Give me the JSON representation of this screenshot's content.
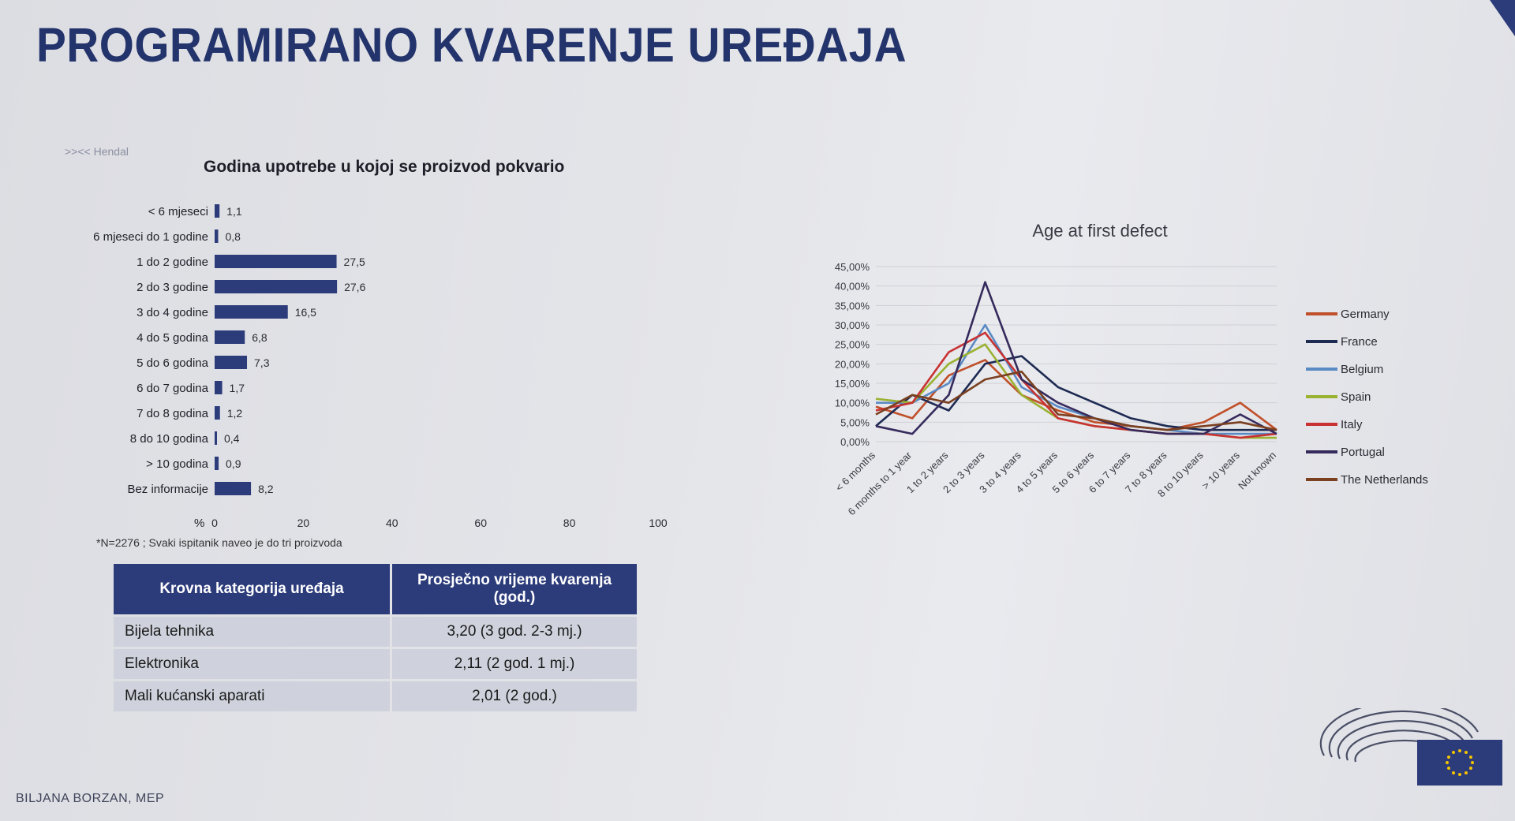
{
  "slide": {
    "title": "PROGRAMIRANO KVARENJE UREĐAJA",
    "logo_text": "Hendal",
    "footnote": "*N=2276 ; Svaki ispitanik naveo je do tri proizvoda",
    "author": "BILJANA BORZAN, MEP"
  },
  "table": {
    "headers": [
      "Krovna kategorija uređaja",
      "Prosječno vrijeme kvarenja (god.)"
    ],
    "rows": [
      {
        "category": "Bijela tehnika",
        "value": "3,20 (3 god. 2-3 mj.)"
      },
      {
        "category": "Elektronika",
        "value": "2,11 (2 god. 1 mj.)"
      },
      {
        "category": "Mali kućanski aparati",
        "value": "2,01 (2 god.)"
      }
    ]
  },
  "colors": {
    "title": "#23336b",
    "bar": "#2c3b7a",
    "table_header": "#2c3b7a",
    "table_cell": "#cfd2dc"
  },
  "chart_data": [
    {
      "type": "bar",
      "orientation": "horizontal",
      "title": "Godina upotrebe u kojoj se proizvod pokvario",
      "xlabel": "%",
      "xlim": [
        0,
        100
      ],
      "xticks": [
        "0",
        "20",
        "40",
        "60",
        "80",
        "100"
      ],
      "categories": [
        "< 6 mjeseci",
        "6 mjeseci do 1 godine",
        "1 do 2 godine",
        "2 do 3 godine",
        "3 do 4 godine",
        "4 do 5 godina",
        "5 do 6 godina",
        "6 do 7 godina",
        "7 do 8 godina",
        "8 do 10 godina",
        "> 10 godina",
        "Bez informacije"
      ],
      "values": [
        1.1,
        0.8,
        27.5,
        27.6,
        16.5,
        6.8,
        7.3,
        1.7,
        1.2,
        0.4,
        0.9,
        8.2
      ],
      "value_labels": [
        "1,1",
        "0,8",
        "27,5",
        "27,6",
        "16,5",
        "6,8",
        "7,3",
        "1,7",
        "1,2",
        "0,4",
        "0,9",
        "8,2"
      ]
    },
    {
      "type": "line",
      "title": "Age at first defect",
      "ylim": [
        0,
        45
      ],
      "yticks": [
        "45,00%",
        "40,00%",
        "35,00%",
        "30,00%",
        "25,00%",
        "20,00%",
        "15,00%",
        "10,00%",
        "5,00%",
        "0,00%"
      ],
      "categories": [
        "< 6 months",
        "6 months to 1 year",
        "1 to 2 years",
        "2 to 3 years",
        "3 to 4 years",
        "4 to 5 years",
        "5 to 6 years",
        "6 to 7 years",
        "7 to 8 years",
        "8 to 10 years",
        "> 10 years",
        "Not known"
      ],
      "legend_position": "right",
      "series": [
        {
          "name": "Germany",
          "color": "#c0502a",
          "values": [
            9,
            6,
            17,
            21,
            12,
            8,
            5,
            4,
            3,
            5,
            10,
            3
          ]
        },
        {
          "name": "France",
          "color": "#1d2a52",
          "values": [
            4,
            12,
            8,
            20,
            22,
            14,
            10,
            6,
            4,
            3,
            3,
            3
          ]
        },
        {
          "name": "Belgium",
          "color": "#5a8ac4",
          "values": [
            10,
            10,
            15,
            30,
            14,
            9,
            6,
            4,
            3,
            2,
            2,
            2
          ]
        },
        {
          "name": "Spain",
          "color": "#9ab232",
          "values": [
            11,
            10,
            20,
            25,
            12,
            6,
            4,
            3,
            2,
            2,
            1,
            1
          ]
        },
        {
          "name": "Italy",
          "color": "#c83232",
          "values": [
            8,
            10,
            23,
            28,
            16,
            6,
            4,
            3,
            2,
            2,
            1,
            2
          ]
        },
        {
          "name": "Portugal",
          "color": "#362a5c",
          "values": [
            4,
            2,
            12,
            41,
            16,
            10,
            6,
            3,
            2,
            2,
            7,
            2
          ]
        },
        {
          "name": "The Netherlands",
          "color": "#7a4020",
          "values": [
            7,
            12,
            10,
            16,
            18,
            7,
            6,
            4,
            3,
            4,
            5,
            3
          ]
        }
      ]
    }
  ]
}
